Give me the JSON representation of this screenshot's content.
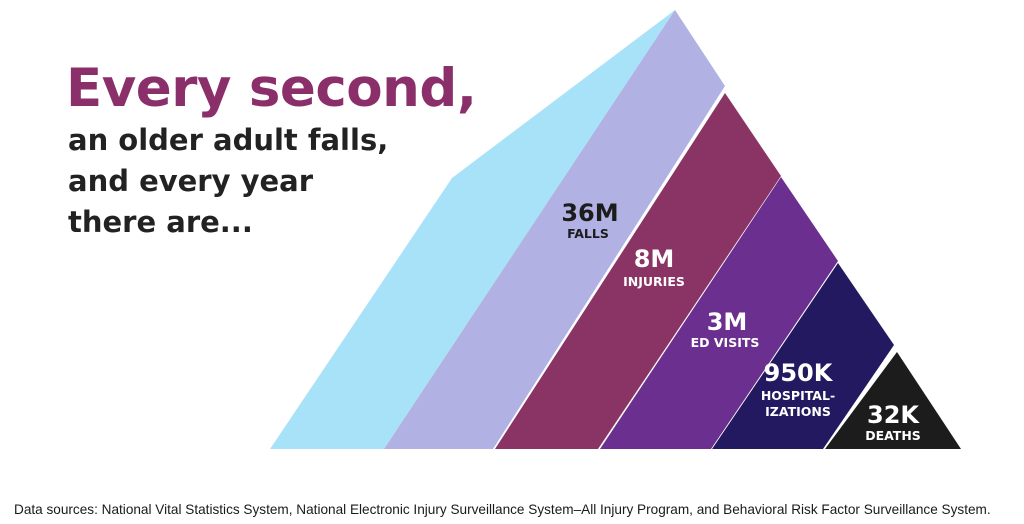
{
  "headline": {
    "title": "Every second,",
    "lines": [
      "an older adult falls,",
      "and every year",
      "there are..."
    ]
  },
  "colors": {
    "title": "#8b2f6b",
    "text": "#222222",
    "falls_back": "#a8e2f8",
    "falls": "#b1b2e3",
    "injuries": "#8a3465",
    "ed_visits": "#6b2f90",
    "hospitalizations": "#231960",
    "deaths": "#1c1c1c"
  },
  "tiers": [
    {
      "value": "36M",
      "label": [
        "FALLS"
      ]
    },
    {
      "value": "8M",
      "label": [
        "INJURIES"
      ]
    },
    {
      "value": "3M",
      "label": [
        "ED VISITS"
      ]
    },
    {
      "value": "950K",
      "label": [
        "HOSPITAL-",
        "IZATIONS"
      ]
    },
    {
      "value": "32K",
      "label": [
        "DEATHS"
      ]
    }
  ],
  "footer": {
    "sources": "Data sources: National Vital Statistics System, National Electronic Injury Surveillance System–All Injury Program, and Behavioral Risk Factor Surveillance System."
  }
}
